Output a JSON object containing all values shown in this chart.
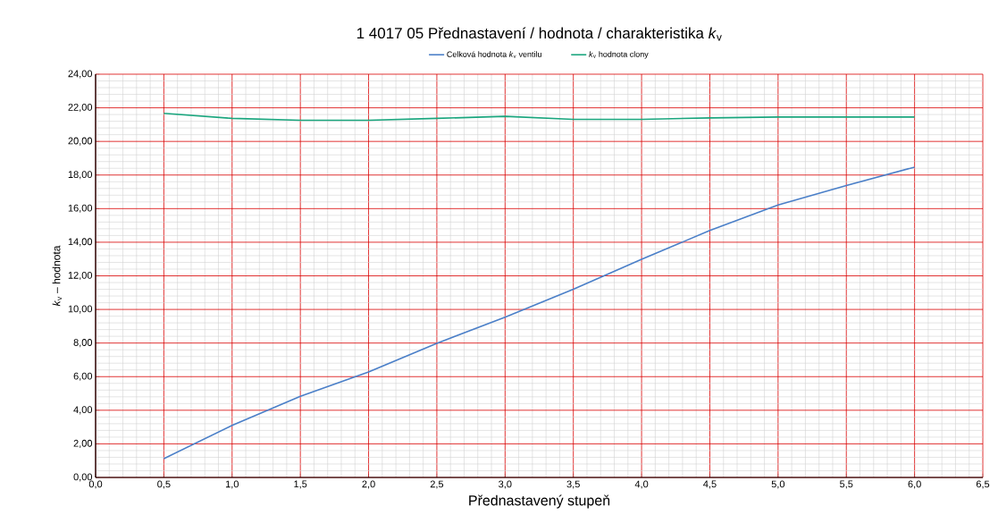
{
  "chart_data": {
    "type": "line",
    "title": "1 4017 05 Přednastavení / hodnota / charakteristika *k*$_{v}$",
    "xlabel": "Přednastavený stupeň",
    "ylabel": "*k*$_{v}$ – hodnota",
    "x": [
      0.5,
      1.0,
      1.5,
      2.0,
      2.5,
      3.0,
      3.5,
      4.0,
      4.5,
      5.0,
      5.5,
      6.0
    ],
    "series": [
      {
        "name": "Celková hodnota *k*$_{v}$ ventilu",
        "color": "#4a7fc8",
        "values": [
          1.12,
          3.1,
          4.83,
          6.28,
          7.98,
          9.54,
          11.2,
          12.98,
          14.7,
          16.22,
          17.38,
          18.47
        ]
      },
      {
        "name": "*k*$_{v}$ hodnota clony",
        "color": "#1aa67e",
        "values": [
          21.67,
          21.37,
          21.26,
          21.26,
          21.37,
          21.49,
          21.31,
          21.31,
          21.4,
          21.45,
          21.45,
          21.45
        ]
      }
    ],
    "xlim": [
      0,
      6.5
    ],
    "xticks": [
      {
        "value": 0,
        "label": "0,0"
      },
      {
        "value": 0.5,
        "label": "0,5"
      },
      {
        "value": 1,
        "label": "1,0"
      },
      {
        "value": 1.5,
        "label": "1,5"
      },
      {
        "value": 2,
        "label": "2,0"
      },
      {
        "value": 2.5,
        "label": "2,5"
      },
      {
        "value": 3,
        "label": "3,0"
      },
      {
        "value": 3.5,
        "label": "3,5"
      },
      {
        "value": 4,
        "label": "4,0"
      },
      {
        "value": 4.5,
        "label": "4,5"
      },
      {
        "value": 5,
        "label": "5,0"
      },
      {
        "value": 5.5,
        "label": "5,5"
      },
      {
        "value": 6,
        "label": "6,0"
      },
      {
        "value": 6.5,
        "label": "6,5"
      }
    ],
    "ylim": [
      0,
      24
    ],
    "yticks": [
      {
        "value": 0,
        "label": "0,00"
      },
      {
        "value": 2,
        "label": "2,00"
      },
      {
        "value": 4,
        "label": "4,00"
      },
      {
        "value": 6,
        "label": "6,00"
      },
      {
        "value": 8,
        "label": "8,00"
      },
      {
        "value": 10,
        "label": "10,00"
      },
      {
        "value": 12,
        "label": "12,00"
      },
      {
        "value": 14,
        "label": "14,00"
      },
      {
        "value": 16,
        "label": "16,00"
      },
      {
        "value": 18,
        "label": "18,00"
      },
      {
        "value": 20,
        "label": "20,00"
      },
      {
        "value": 22,
        "label": "22,00"
      },
      {
        "value": 24,
        "label": "24,00"
      }
    ],
    "grid": true,
    "legend": "top",
    "marker": "none",
    "line_style": "solid"
  }
}
